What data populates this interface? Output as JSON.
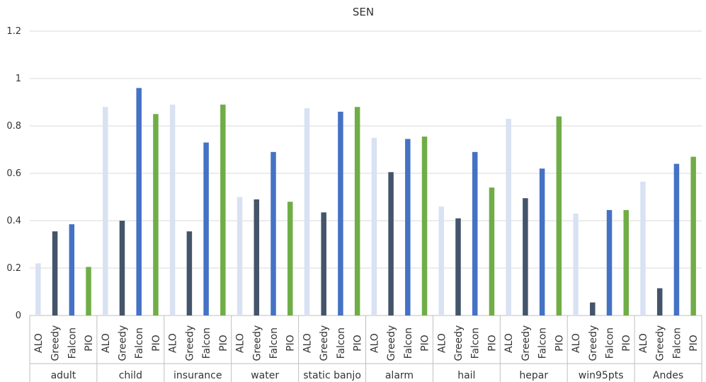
{
  "chart_data": {
    "type": "bar",
    "title": "SEN",
    "xlabel": "",
    "ylabel": "",
    "ylim": [
      0,
      1.2
    ],
    "yticks": [
      "0",
      "0.2",
      "0.4",
      "0.6",
      "0.8",
      "1",
      "1.2"
    ],
    "grid": true,
    "groups": [
      "adult",
      "child",
      "insurance",
      "water",
      "static banjo",
      "alarm",
      "hail",
      "hepar",
      "win95pts",
      "Andes"
    ],
    "bar_labels": [
      "ALO",
      "Greedy",
      "Falcon",
      "PIO"
    ],
    "colors": {
      "ALO": "#d9e2f3",
      "Greedy": "#44546a",
      "Falcon": "#4472c4",
      "PIO": "#70ad47"
    },
    "series": [
      {
        "values": [
          0.22,
          0.88,
          0.89,
          0.5,
          0.875,
          0.75,
          0.46,
          0.83,
          0.43,
          0.565
        ]
      },
      {
        "values": [
          0.355,
          0.4,
          0.355,
          0.49,
          0.435,
          0.605,
          0.41,
          0.495,
          0.055,
          0.115
        ]
      },
      {
        "values": [
          0.385,
          0.96,
          0.73,
          0.69,
          0.86,
          0.745,
          0.69,
          0.62,
          0.445,
          0.64
        ]
      },
      {
        "values": [
          0.205,
          0.85,
          0.89,
          0.48,
          0.88,
          0.755,
          0.54,
          0.84,
          0.445,
          0.67
        ]
      }
    ]
  }
}
